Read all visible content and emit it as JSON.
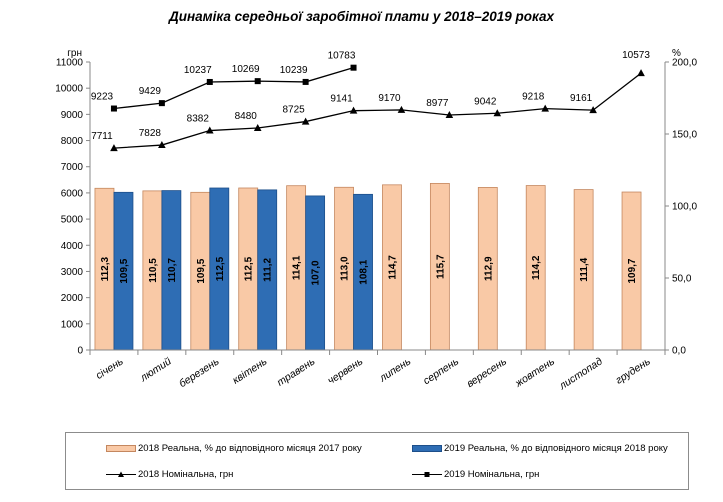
{
  "chart_data": {
    "type": "bar+line",
    "title": "Динаміка середньої заробітної плати у 2018–2019 роках",
    "categories": [
      "січень",
      "лютий",
      "березень",
      "квітень",
      "травень",
      "червень",
      "липень",
      "серпень",
      "вересень",
      "жовтень",
      "листопад",
      "грудень"
    ],
    "left_axis": {
      "unit": "грн",
      "min": 0,
      "max": 11000,
      "step": 1000,
      "ticks": [
        "0",
        "1000",
        "2000",
        "3000",
        "4000",
        "5000",
        "6000",
        "7000",
        "8000",
        "9000",
        "10000",
        "11000"
      ]
    },
    "right_axis": {
      "unit": "%",
      "min": 0,
      "max": 200,
      "step": 50,
      "ticks": [
        "0,0",
        "50,0",
        "100,0",
        "150,0",
        "200,0"
      ]
    },
    "series": [
      {
        "name": "2018 Реальна, % до відповідного місяця 2017 року",
        "kind": "bar",
        "axis": "right",
        "fill": "#f9c9a6",
        "stroke": "#c4875f",
        "values": [
          112.3,
          110.5,
          109.5,
          112.5,
          114.1,
          113.0,
          114.7,
          115.7,
          112.9,
          114.2,
          111.4,
          109.7
        ],
        "labels": [
          "112,3",
          "110,5",
          "109,5",
          "112,5",
          "114,1",
          "113,0",
          "114,7",
          "115,7",
          "112,9",
          "114,2",
          "111,4",
          "109,7"
        ]
      },
      {
        "name": "2019 Реальна, % до відповідного місяця 2018 року",
        "kind": "bar",
        "axis": "right",
        "fill": "#2e6db4",
        "stroke": "#1d4f8a",
        "values": [
          109.5,
          110.7,
          112.5,
          111.2,
          107.0,
          108.1,
          null,
          null,
          null,
          null,
          null,
          null
        ],
        "labels": [
          "109,5",
          "110,7",
          "112,5",
          "111,2",
          "107,0",
          "108,1",
          null,
          null,
          null,
          null,
          null,
          null
        ]
      },
      {
        "name": "2018 Номінальна, грн",
        "kind": "line",
        "axis": "left",
        "marker": "triangle",
        "color": "#000000",
        "values": [
          7711,
          7828,
          8382,
          8480,
          8725,
          9141,
          9170,
          8977,
          9042,
          9218,
          9161,
          10573
        ],
        "labels": [
          "7711",
          "7828",
          "8382",
          "8480",
          "8725",
          "9141",
          "9170",
          "8977",
          "9042",
          "9218",
          "9161",
          "10573"
        ]
      },
      {
        "name": "2019 Номінальна, грн",
        "kind": "line",
        "axis": "left",
        "marker": "square",
        "color": "#000000",
        "values": [
          9223,
          9429,
          10237,
          10269,
          10239,
          10783,
          null,
          null,
          null,
          null,
          null,
          null
        ],
        "labels": [
          "9223",
          "9429",
          "10237",
          "10269",
          "10239",
          "10783",
          null,
          null,
          null,
          null,
          null,
          null
        ]
      }
    ],
    "legend_position": "bottom"
  }
}
